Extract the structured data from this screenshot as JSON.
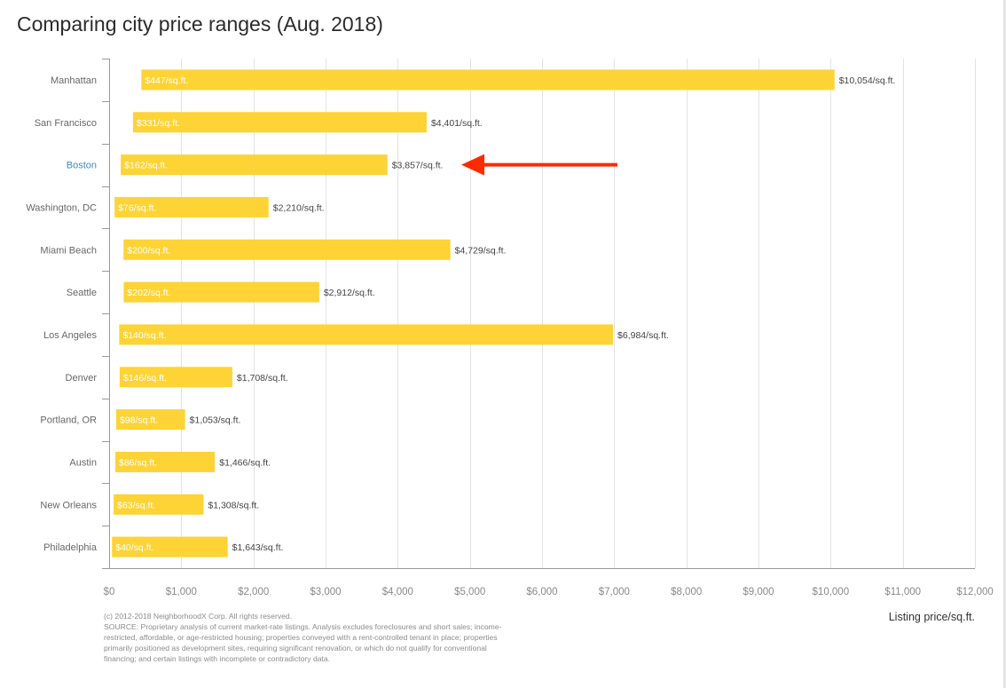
{
  "title": "Comparing city price ranges (Aug. 2018)",
  "x_axis_title": "Listing price/sq.ft.",
  "footnote": {
    "copyright": "(c) 2012-2018 NeighborhoodX Corp. All rights reserved.",
    "source": "SOURCE: Proprietary analysis of current market-rate listings. Analysis excludes foreclosures and short sales; income-restricted, affordable, or age-restricted housing; properties conveyed with a rent-controlled tenant in place; properties primarily positioned as development sites, requiring significant renovation, or which do not qualify for conventional financing; and certain listings with incomplete or contradictory data."
  },
  "colors": {
    "bar": "#fdd336",
    "highlight_label": "#3b8fc4",
    "arrow": "#ff2a00",
    "grid": "#e3e3e3"
  },
  "chart_data": {
    "type": "bar",
    "orientation": "horizontal",
    "subtype": "floating-range",
    "categories": [
      "Manhattan",
      "San Francisco",
      "Boston",
      "Washington, DC",
      "Miami Beach",
      "Seattle",
      "Los Angeles",
      "Denver",
      "Portland, OR",
      "Austin",
      "New Orleans",
      "Philadelphia"
    ],
    "low": [
      447,
      331,
      162,
      76,
      200,
      202,
      140,
      146,
      98,
      86,
      63,
      40
    ],
    "high": [
      10054,
      4401,
      3857,
      2210,
      4729,
      2912,
      6984,
      1708,
      1053,
      1466,
      1308,
      1643
    ],
    "low_labels": [
      "$447/sq.ft.",
      "$331/sq.ft.",
      "$162/sq.ft.",
      "$76/sq.ft.",
      "$200/sq.ft.",
      "$202/sq.ft.",
      "$140/sq.ft.",
      "$146/sq.ft.",
      "$98/sq.ft.",
      "$86/sq.ft.",
      "$63/sq.ft.",
      "$40/sq.ft."
    ],
    "high_labels": [
      "$10,054/sq.ft.",
      "$4,401/sq.ft.",
      "$3,857/sq.ft.",
      "$2,210/sq.ft.",
      "$4,729/sq.ft.",
      "$2,912/sq.ft.",
      "$6,984/sq.ft.",
      "$1,708/sq.ft.",
      "$1,053/sq.ft.",
      "$1,466/sq.ft.",
      "$1,308/sq.ft.",
      "$1,643/sq.ft."
    ],
    "highlighted_category": "Boston",
    "annotation": "arrow pointing at Boston",
    "xlim": [
      0,
      12000
    ],
    "x_ticks": [
      0,
      1000,
      2000,
      3000,
      4000,
      5000,
      6000,
      7000,
      8000,
      9000,
      10000,
      11000,
      12000
    ],
    "x_tick_labels": [
      "$0",
      "$1,000",
      "$2,000",
      "$3,000",
      "$4,000",
      "$5,000",
      "$6,000",
      "$7,000",
      "$8,000",
      "$9,000",
      "$10,000",
      "$11,000",
      "$12,000"
    ],
    "xlabel": "Listing price/sq.ft.",
    "grid": "vertical"
  }
}
